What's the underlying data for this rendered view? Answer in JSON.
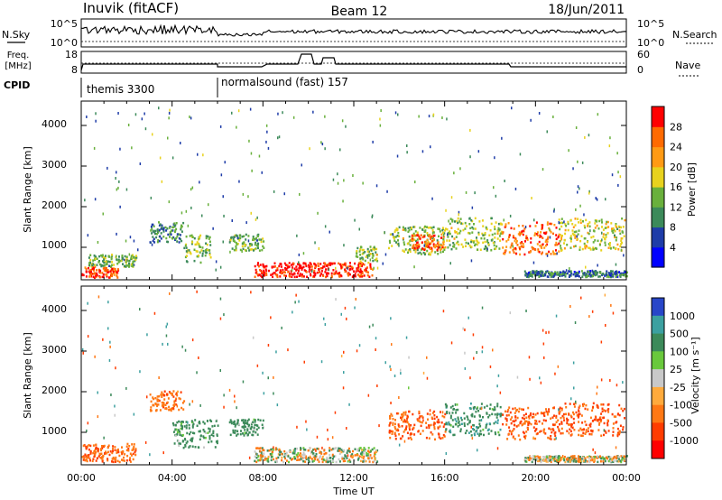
{
  "header": {
    "station": "Inuvik (fitACF)",
    "beam": "Beam 12",
    "date": "18/Jun/2011"
  },
  "nsky_panel": {
    "left_label": "N.Sky",
    "right_label": "N.Search",
    "left_ticks": [
      "10^5",
      "10^0"
    ],
    "right_ticks": [
      "10^5",
      "10^0"
    ]
  },
  "freq_panel": {
    "left_label_1": "Freq.",
    "left_label_2": "[MHz]",
    "right_label": "Nave",
    "left_ticks": [
      "18",
      "8"
    ],
    "right_ticks": [
      "60",
      "0"
    ]
  },
  "cpid": {
    "label": "CPID",
    "segments": [
      {
        "name": "themis 3300",
        "start_hour": 0
      },
      {
        "name": "normalsound (fast) 157",
        "start_hour": 6
      }
    ]
  },
  "chart_data": [
    {
      "type": "heatmap",
      "title": "Power",
      "xlabel": "",
      "ylabel": "Slant Range [km]",
      "xlim": [
        0,
        24
      ],
      "ylim": [
        200,
        4600
      ],
      "yticks": [
        "1000",
        "2000",
        "3000",
        "4000"
      ],
      "colorbar": {
        "label": "Power [dB]",
        "ticks": [
          "4",
          "8",
          "12",
          "16",
          "20",
          "24",
          "28"
        ],
        "range": [
          0,
          30
        ],
        "colors": [
          "#0000ff",
          "#1e3ca8",
          "#3c8a5a",
          "#69b03c",
          "#e8d21e",
          "#ff9a14",
          "#ff6a00",
          "#ff0000"
        ]
      },
      "regions": [
        {
          "t": [
            0.0,
            1.6
          ],
          "r": [
            230,
            500
          ],
          "level": 26
        },
        {
          "t": [
            0.3,
            2.4
          ],
          "r": [
            500,
            800
          ],
          "level": 12
        },
        {
          "t": [
            3.0,
            4.5
          ],
          "r": [
            1100,
            1600
          ],
          "level": 10
        },
        {
          "t": [
            4.5,
            5.7
          ],
          "r": [
            600,
            1300
          ],
          "level": 14
        },
        {
          "t": [
            6.5,
            8.0
          ],
          "r": [
            900,
            1300
          ],
          "level": 12
        },
        {
          "t": [
            7.6,
            10.6
          ],
          "r": [
            250,
            600
          ],
          "level": 29
        },
        {
          "t": [
            10.6,
            12.8
          ],
          "r": [
            250,
            600
          ],
          "level": 27
        },
        {
          "t": [
            12.0,
            13.0
          ],
          "r": [
            600,
            1000
          ],
          "level": 14
        },
        {
          "t": [
            13.5,
            16.0
          ],
          "r": [
            800,
            1500
          ],
          "level": 14
        },
        {
          "t": [
            14.5,
            16.0
          ],
          "r": [
            900,
            1300
          ],
          "level": 24
        },
        {
          "t": [
            16.0,
            18.5
          ],
          "r": [
            900,
            1700
          ],
          "level": 14
        },
        {
          "t": [
            18.5,
            21.0
          ],
          "r": [
            800,
            1600
          ],
          "level": 24
        },
        {
          "t": [
            21.0,
            23.9
          ],
          "r": [
            900,
            1700
          ],
          "level": 16
        },
        {
          "t": [
            19.5,
            24.0
          ],
          "r": [
            250,
            400
          ],
          "level": 8
        }
      ]
    },
    {
      "type": "heatmap",
      "title": "Velocity",
      "xlabel": "Time UT",
      "ylabel": "Slant Range [km]",
      "xlim": [
        0,
        24
      ],
      "ylim": [
        200,
        4600
      ],
      "xticks": [
        "00:00",
        "04:00",
        "08:00",
        "12:00",
        "16:00",
        "20:00",
        "00:00"
      ],
      "yticks": [
        "1000",
        "2000",
        "3000",
        "4000"
      ],
      "colorbar": {
        "label": "Velocity [m s⁻¹]",
        "ticks": [
          "1000",
          "500",
          "100",
          "25",
          "-25",
          "-100",
          "-500",
          "-1000"
        ],
        "colors": [
          "#2846c8",
          "#3ca0a0",
          "#3c8a5a",
          "#69c83c",
          "#c8c8c8",
          "#ffaa3c",
          "#ff7814",
          "#ff3c00",
          "#ff0000"
        ]
      },
      "regions": [
        {
          "t": [
            0.0,
            2.4
          ],
          "r": [
            250,
            700
          ],
          "v": -250
        },
        {
          "t": [
            3.0,
            4.5
          ],
          "r": [
            1500,
            2000
          ],
          "v": -200
        },
        {
          "t": [
            4.0,
            6.0
          ],
          "r": [
            600,
            1300
          ],
          "v": 150
        },
        {
          "t": [
            6.5,
            8.0
          ],
          "r": [
            900,
            1300
          ],
          "v": 150
        },
        {
          "t": [
            7.6,
            13.0
          ],
          "r": [
            250,
            600
          ],
          "v": 0
        },
        {
          "t": [
            13.5,
            16.0
          ],
          "r": [
            800,
            1500
          ],
          "v": -300
        },
        {
          "t": [
            16.0,
            18.5
          ],
          "r": [
            900,
            1700
          ],
          "v": 200
        },
        {
          "t": [
            18.5,
            21.0
          ],
          "r": [
            800,
            1600
          ],
          "v": -300
        },
        {
          "t": [
            21.0,
            23.9
          ],
          "r": [
            900,
            1700
          ],
          "v": -350
        },
        {
          "t": [
            19.5,
            24.0
          ],
          "r": [
            250,
            400
          ],
          "v": 0
        }
      ]
    }
  ]
}
